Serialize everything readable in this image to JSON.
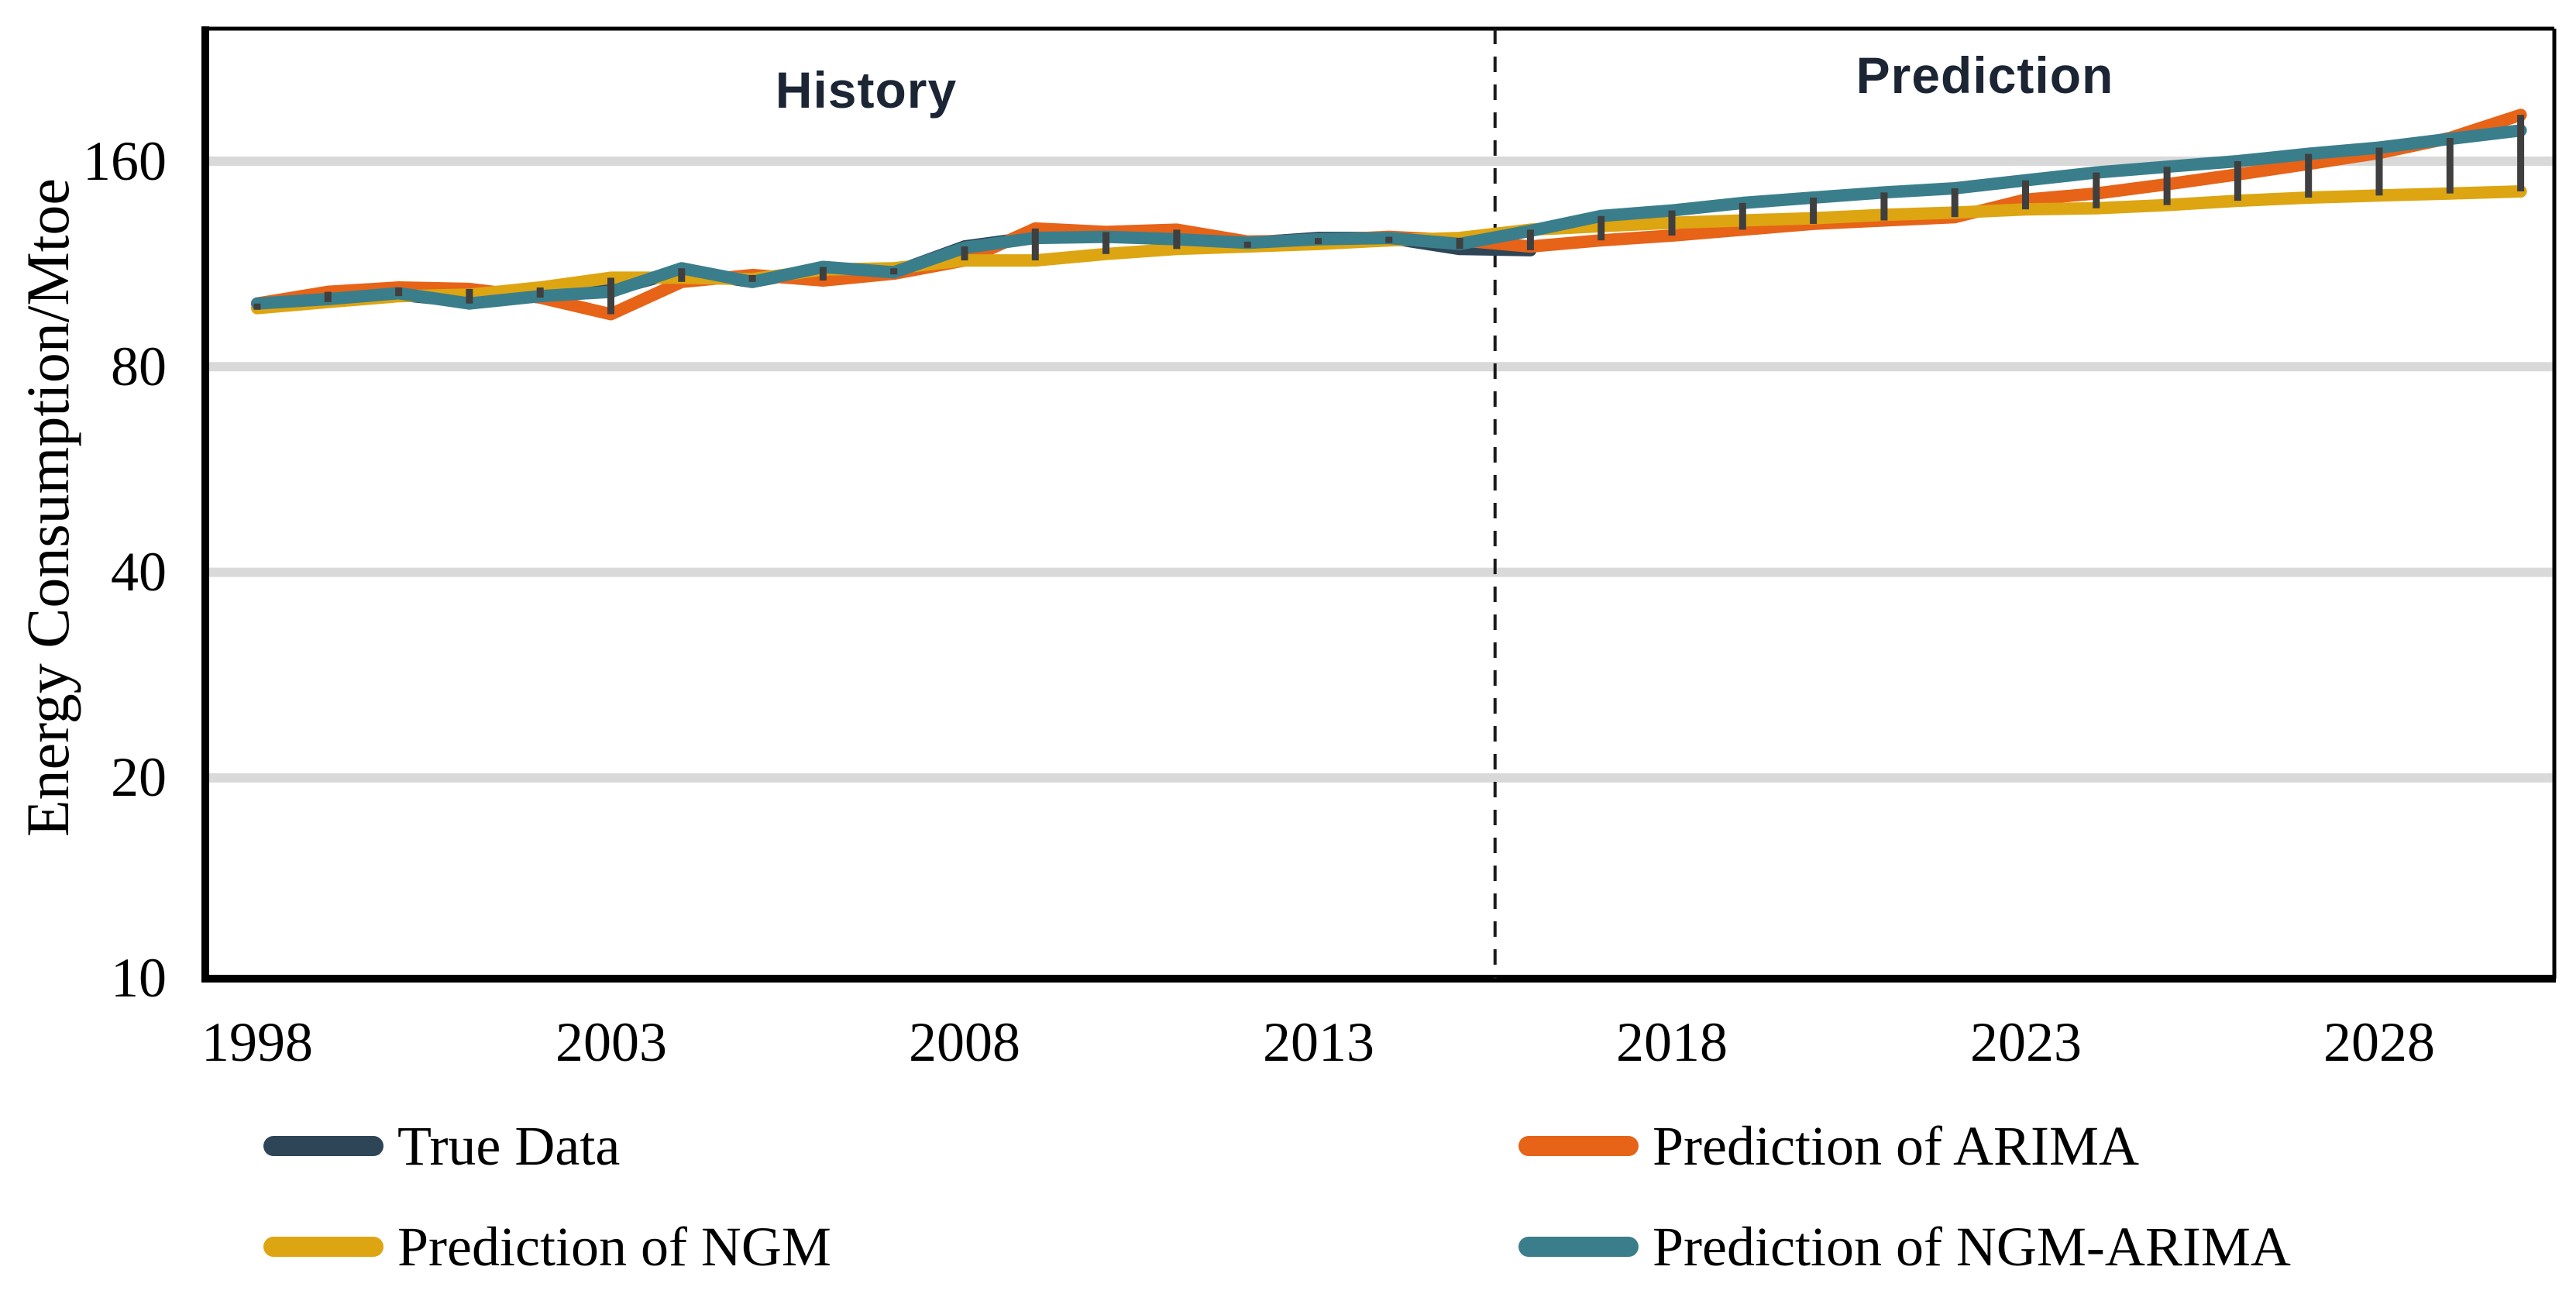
{
  "figure_title": "Energy consumption history and prediction chart",
  "colors": {
    "true_data": "#2E4557",
    "arima": "#E66318",
    "ngm": "#DDA511",
    "ngm_arima": "#3A7E8C",
    "range_bar": "#3F3F3F",
    "gridline": "#D9D9D9",
    "axis": "#000000",
    "divider": "#1A1A1A",
    "zone_label_text": "#1B2534"
  },
  "legend": {
    "items": [
      {
        "label": "True Data",
        "color": "#2E4557"
      },
      {
        "label": "Prediction of ARIMA",
        "color": "#E66318"
      },
      {
        "label": "Prediction of NGM",
        "color": "#DDA511"
      },
      {
        "label": "Prediction of NGM-ARIMA",
        "color": "#3A7E8C"
      }
    ]
  },
  "chart_data": {
    "type": "line",
    "title": "",
    "xlabel": "",
    "ylabel": "Energy Consumption/Mtoe",
    "yscale": "log2",
    "ylim": [
      10,
      255
    ],
    "yticks": [
      160,
      80,
      40,
      20,
      10
    ],
    "ytick_labels": [
      "160",
      "80",
      "40",
      "20",
      "10"
    ],
    "xticks": [
      1998,
      2003,
      2008,
      2013,
      2018,
      2023,
      2028
    ],
    "xtick_labels": [
      "1998",
      "2003",
      "2008",
      "2013",
      "2018",
      "2023",
      "2028"
    ],
    "grid": "horizontal",
    "legend_position": "bottom",
    "annotations": [
      {
        "text": "History",
        "zone": "left-of-divider"
      },
      {
        "text": "Prediction",
        "zone": "right-of-divider"
      }
    ],
    "divider_year": 2015.5,
    "range_bars": "min-max of all series at each year",
    "x": [
      1998,
      1999,
      2000,
      2001,
      2002,
      2003,
      2004,
      2005,
      2006,
      2007,
      2008,
      2009,
      2010,
      2011,
      2012,
      2013,
      2014,
      2015,
      2016,
      2017,
      2018,
      2019,
      2020,
      2021,
      2022,
      2023,
      2024,
      2025,
      2026,
      2027,
      2028,
      2029,
      2030
    ],
    "series": [
      {
        "name": "True Data",
        "color": "#2E4557",
        "values": [
          99,
          100.5,
          102,
          99.5,
          101.5,
          103.5,
          110.5,
          106.5,
          111.5,
          110,
          120,
          124,
          124.5,
          123.5,
          121.5,
          123.5,
          123.5,
          119,
          118.5,
          null,
          null,
          null,
          null,
          null,
          null,
          null,
          null,
          null,
          null,
          null,
          null,
          null,
          null
        ]
      },
      {
        "name": "Prediction of ARIMA",
        "color": "#E66318",
        "values": [
          99,
          103,
          104.5,
          104,
          101,
          95.5,
          106.5,
          109,
          107,
          109.5,
          114.5,
          127.5,
          126,
          127,
          122,
          122.5,
          124,
          122.5,
          120,
          122.5,
          124.5,
          127,
          129.5,
          131,
          132.5,
          140.5,
          143.5,
          148,
          153,
          158.5,
          164.5,
          173,
          187
        ]
      },
      {
        "name": "Prediction of NGM",
        "color": "#DDA511",
        "values": [
          97.5,
          99.5,
          101.5,
          102,
          104.5,
          108,
          108,
          107.5,
          111,
          111.5,
          114.5,
          114.5,
          117,
          119,
          120,
          121,
          122.5,
          123.5,
          127,
          128.5,
          130,
          131,
          132,
          133.5,
          134.5,
          136,
          136.5,
          138,
          140,
          141.5,
          142.5,
          143.5,
          144.5
        ]
      },
      {
        "name": "Prediction of NGM-ARIMA",
        "color": "#3A7E8C",
        "values": [
          99,
          100.5,
          102.5,
          99,
          101.5,
          103,
          111.5,
          106.5,
          112,
          110,
          119.5,
          123.5,
          124,
          123,
          121.5,
          123,
          123.5,
          121,
          126.5,
          133,
          135.5,
          139,
          141.5,
          144,
          146,
          150,
          154,
          157,
          160,
          164,
          167.5,
          172.5,
          177.5
        ]
      }
    ]
  }
}
